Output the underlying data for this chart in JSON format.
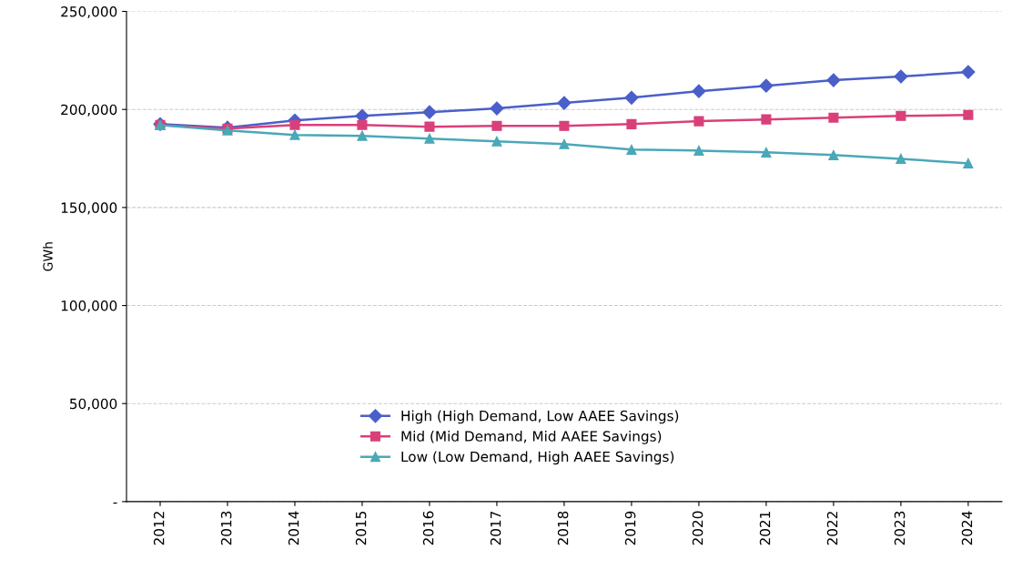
{
  "chart_data": {
    "type": "line",
    "ylabel": "GWh",
    "categories": [
      "2012",
      "2013",
      "2014",
      "2015",
      "2016",
      "2017",
      "2018",
      "2019",
      "2020",
      "2021",
      "2022",
      "2023",
      "2024"
    ],
    "series": [
      {
        "name": "High (High Demand, Low AAEE Savings)",
        "color": "#4a5fc9",
        "marker": "diamond",
        "values": [
          192500,
          190700,
          194400,
          196700,
          198600,
          200500,
          203300,
          206000,
          209300,
          212100,
          214900,
          216800,
          219100
        ]
      },
      {
        "name": "Mid (Mid Demand, Mid AAEE Savings)",
        "color": "#d9407a",
        "marker": "square",
        "values": [
          192000,
          190200,
          192100,
          192100,
          191200,
          191600,
          191600,
          192500,
          194000,
          194900,
          195800,
          196700,
          197200
        ]
      },
      {
        "name": "Low (Low Demand, High AAEE Savings)",
        "color": "#4aa8b8",
        "marker": "triangle",
        "values": [
          192000,
          189300,
          187000,
          186500,
          185100,
          183700,
          182300,
          179500,
          179000,
          178100,
          176700,
          174800,
          172500
        ]
      }
    ],
    "ylim": [
      0,
      250000
    ],
    "yticks": [
      {
        "value": 0,
        "label": "-"
      },
      {
        "value": 50000,
        "label": "50,000"
      },
      {
        "value": 100000,
        "label": "100,000"
      },
      {
        "value": 150000,
        "label": "150,000"
      },
      {
        "value": 200000,
        "label": "200,000"
      },
      {
        "value": 250000,
        "label": "250,000"
      }
    ],
    "grid": "y",
    "legend": "bottom",
    "line_style": "solid"
  }
}
